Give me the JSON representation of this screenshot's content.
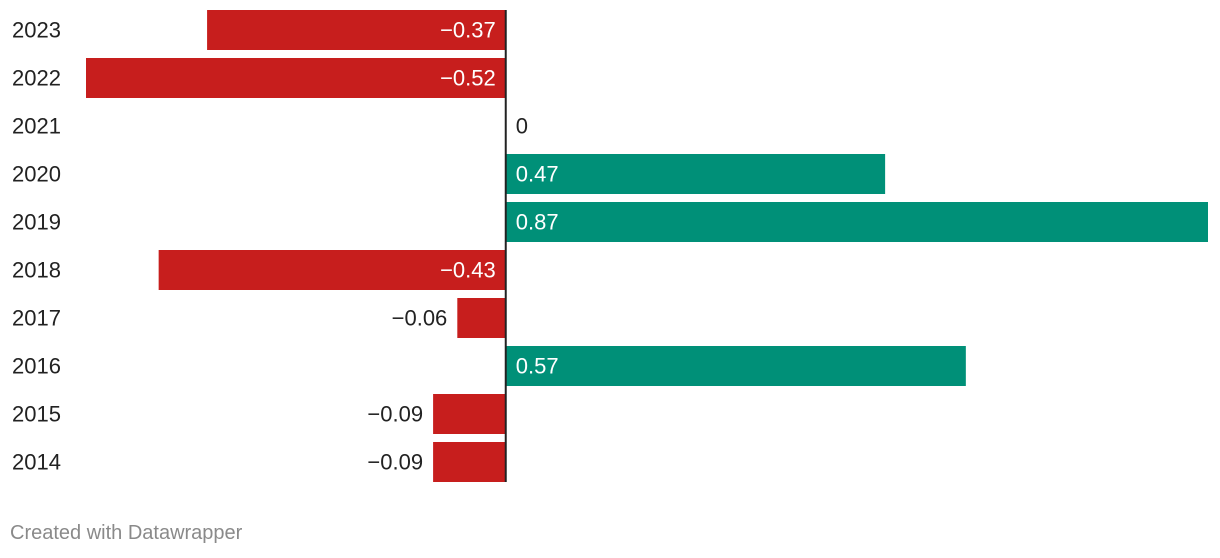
{
  "chart_data": {
    "type": "bar",
    "orientation": "horizontal",
    "categories": [
      "2023",
      "2022",
      "2021",
      "2020",
      "2019",
      "2018",
      "2017",
      "2016",
      "2015",
      "2014"
    ],
    "values": [
      -0.37,
      -0.52,
      0,
      0.47,
      0.87,
      -0.43,
      -0.06,
      0.57,
      -0.09,
      -0.09
    ],
    "value_labels": [
      "−0.37",
      "−0.52",
      "0",
      "0.47",
      "0.87",
      "−0.43",
      "−0.06",
      "0.57",
      "−0.09",
      "−0.09"
    ],
    "xlim": [
      -0.52,
      0.87
    ],
    "colors": {
      "negative": "#c71e1d",
      "positive": "#009078",
      "axis": "#222222"
    },
    "title": "",
    "xlabel": "",
    "ylabel": ""
  },
  "footer": {
    "credit": "Created with Datawrapper"
  }
}
